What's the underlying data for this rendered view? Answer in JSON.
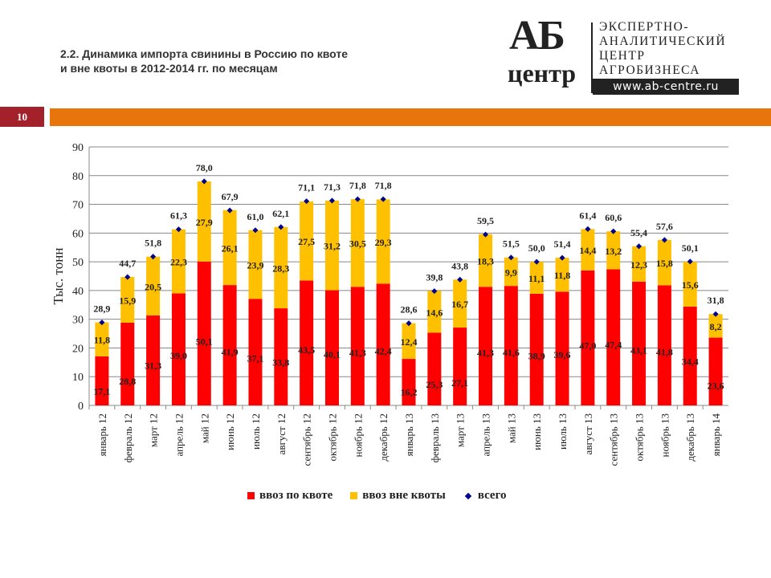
{
  "header": {
    "title_line1": "2.2. Динамика импорта свинины в Россию по квоте",
    "title_line2": "и вне квоты в 2012-2014 гг. по месяцам",
    "slide_number": "10"
  },
  "logo": {
    "mark_top": "АБ",
    "mark_bottom": "центр",
    "line1": "ЭКСПЕРТНО-",
    "line2": "АНАЛИТИЧЕСКИЙ",
    "line3": "ЦЕНТР",
    "line4": "АГРОБИЗНЕСА",
    "url": "www.ab-centre.ru"
  },
  "colors": {
    "quota": "#ff0000",
    "non_quota": "#ffc000",
    "total": "#00008b",
    "accent_bar": "#e8740c",
    "slide_num_bg": "#a3212b"
  },
  "chart_data": {
    "type": "bar",
    "stacked": true,
    "title": "",
    "xlabel": "",
    "ylabel": "Тыс. тонн",
    "ylim": [
      0,
      90
    ],
    "yticks": [
      0,
      10,
      20,
      30,
      40,
      50,
      60,
      70,
      80,
      90
    ],
    "grid": true,
    "legend_position": "bottom",
    "categories": [
      "январь 12",
      "февраль 12",
      "март 12",
      "апрель 12",
      "май 12",
      "июнь 12",
      "июль 12",
      "август 12",
      "сентябрь 12",
      "октябрь 12",
      "ноябрь 12",
      "декабрь 12",
      "январь 13",
      "февраль 13",
      "март 13",
      "апрель 13",
      "май 13",
      "июнь 13",
      "июль 13",
      "август 13",
      "сентябрь 13",
      "октябрь 13",
      "ноябрь 13",
      "декабрь 13",
      "январь 14"
    ],
    "series": [
      {
        "name": "ввоз по квоте",
        "type": "bar",
        "values": [
          17.1,
          28.8,
          31.3,
          39.0,
          50.1,
          41.9,
          37.1,
          33.8,
          43.5,
          40.1,
          41.3,
          42.4,
          16.2,
          25.3,
          27.1,
          41.3,
          41.6,
          38.9,
          39.6,
          47.0,
          47.4,
          43.1,
          41.8,
          34.4,
          23.6
        ]
      },
      {
        "name": "ввоз вне квоты",
        "type": "bar",
        "values": [
          11.8,
          15.9,
          20.5,
          22.3,
          27.9,
          26.1,
          23.9,
          28.3,
          27.5,
          31.2,
          30.5,
          29.3,
          12.4,
          14.6,
          16.7,
          18.3,
          9.9,
          11.1,
          11.8,
          14.4,
          13.2,
          12.3,
          15.8,
          15.6,
          8.2
        ]
      },
      {
        "name": "всего",
        "type": "marker",
        "values": [
          28.9,
          44.7,
          51.8,
          61.3,
          78.0,
          67.9,
          61.0,
          62.1,
          71.1,
          71.3,
          71.8,
          71.8,
          28.6,
          39.8,
          43.8,
          59.5,
          51.5,
          50.0,
          51.4,
          61.4,
          60.6,
          55.4,
          57.6,
          50.1,
          31.8
        ]
      }
    ]
  }
}
